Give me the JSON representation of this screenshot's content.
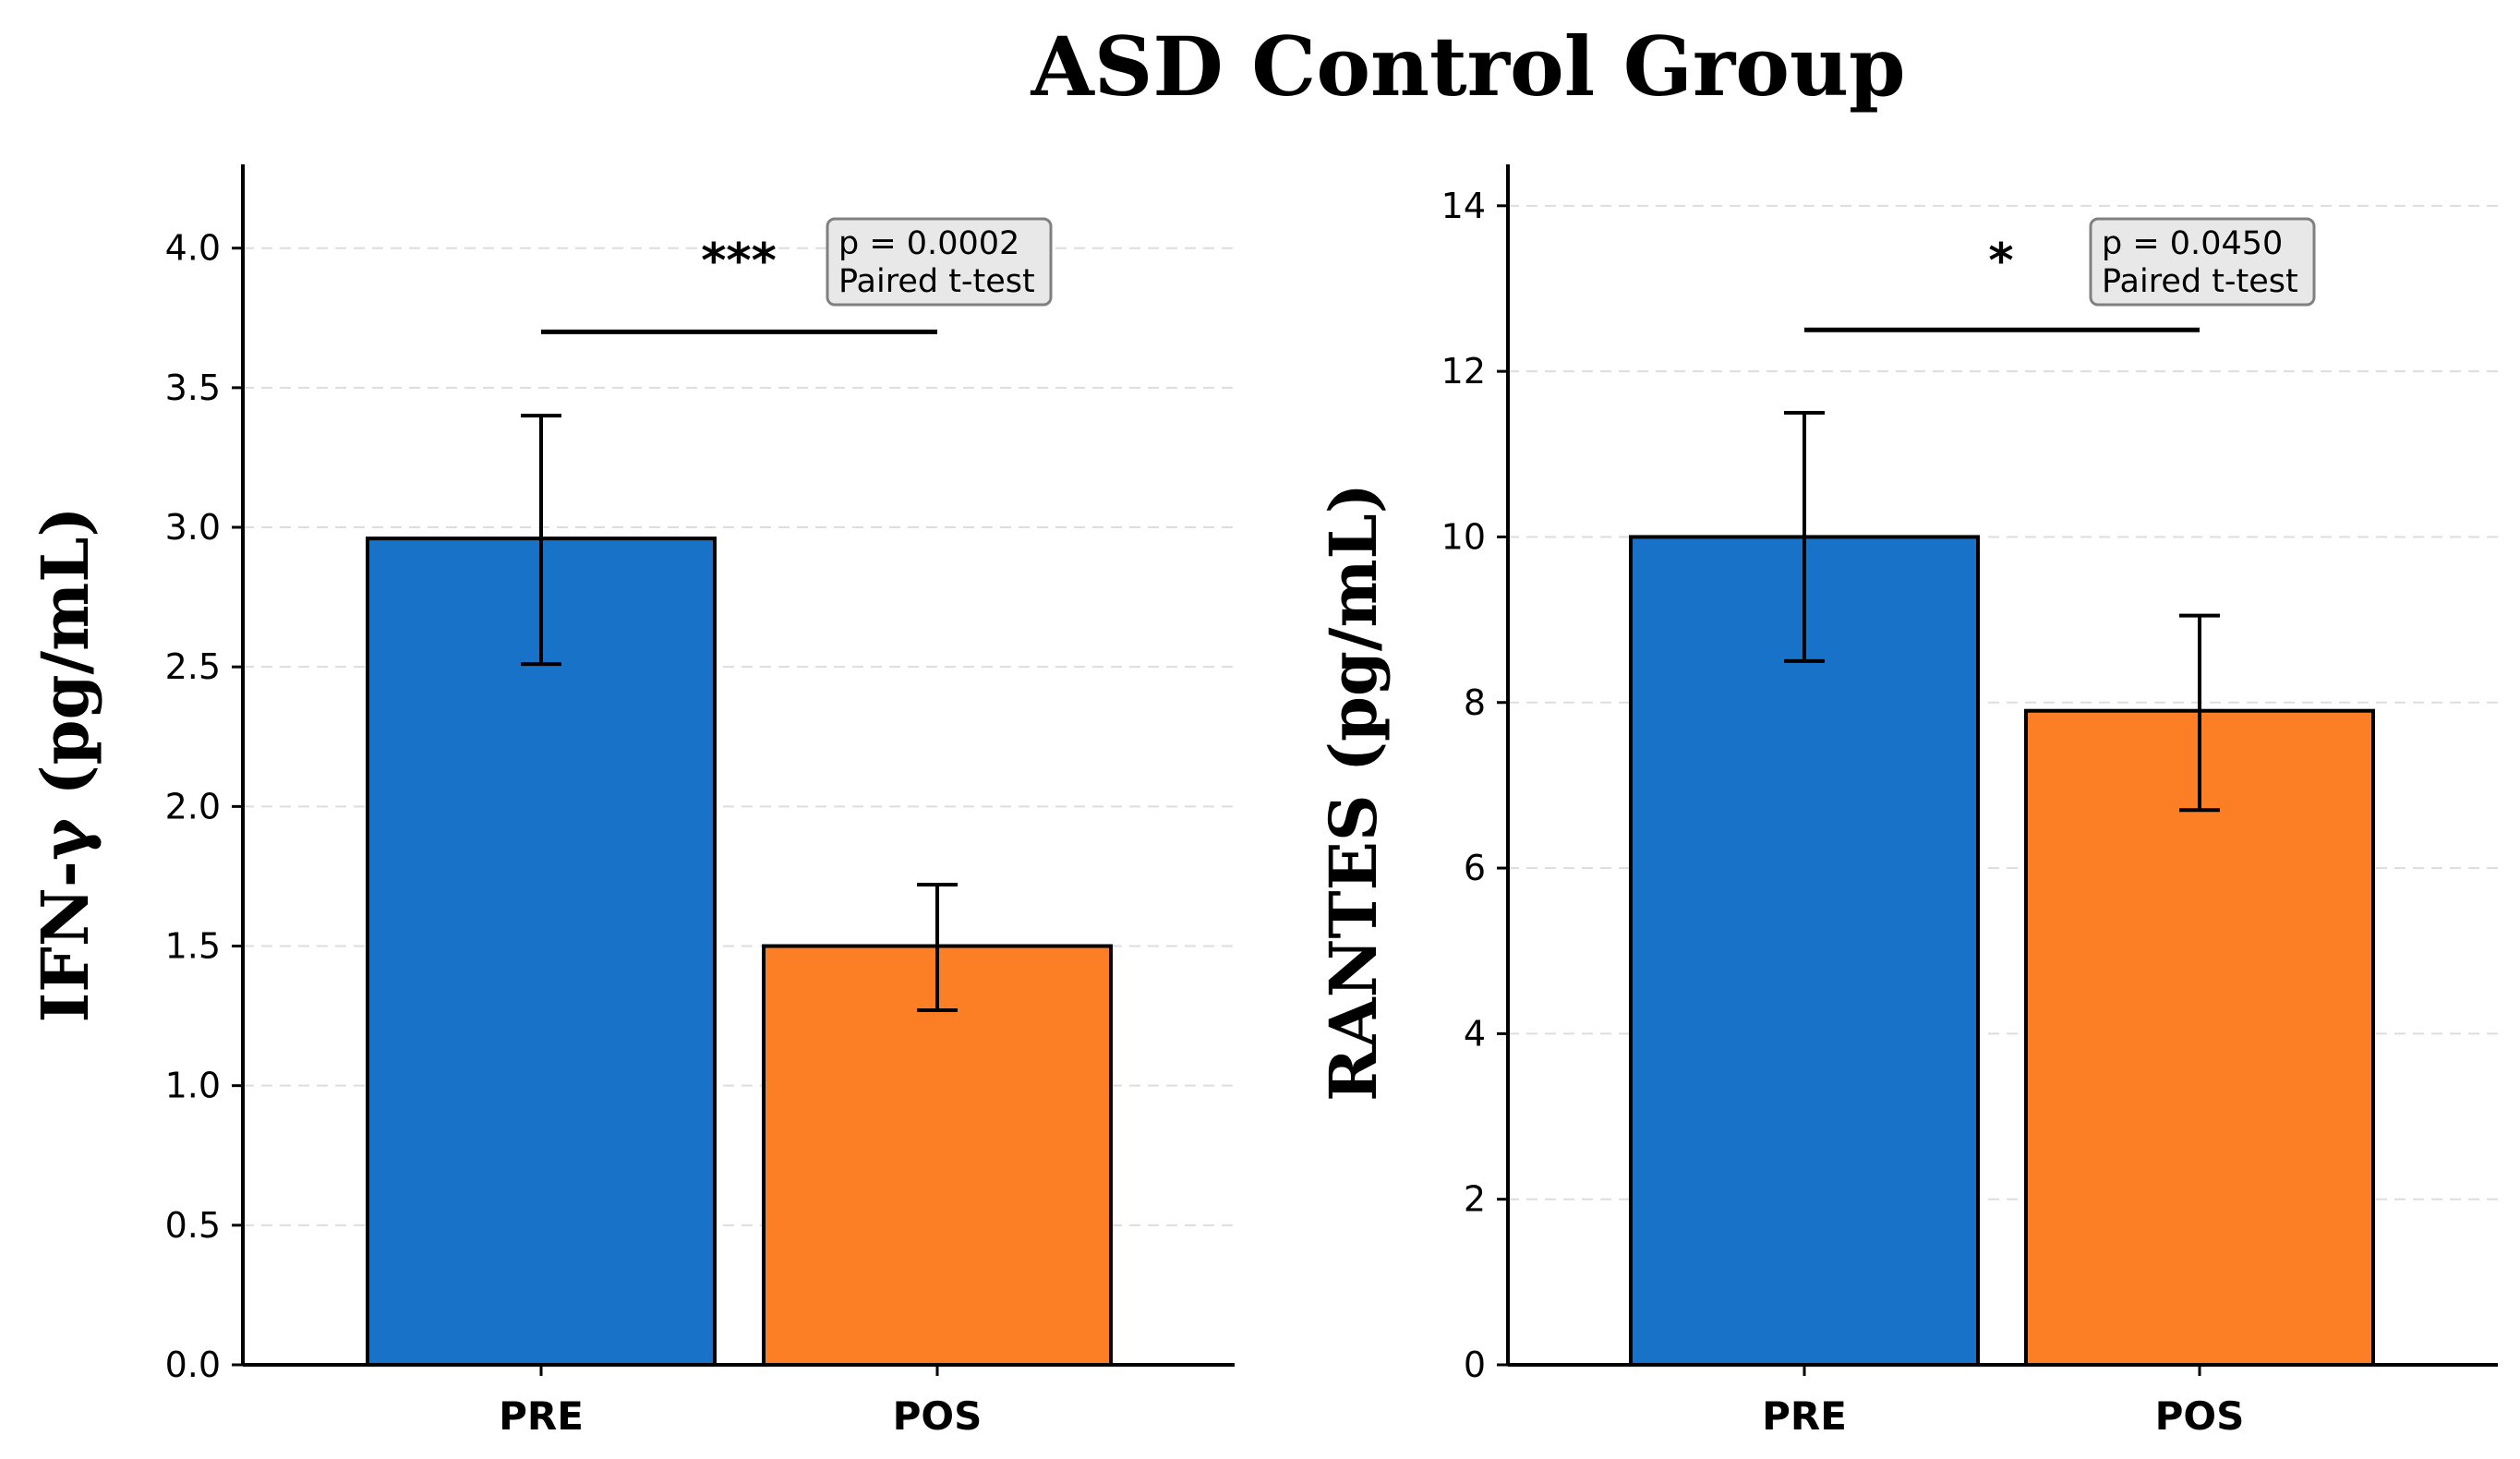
{
  "title": "ASD Control Group",
  "colors": {
    "pre": "#1872C8",
    "pos": "#FC7E25",
    "grid": "#dddddd",
    "box_fill": "#e8e8e8",
    "box_stroke": "#808080"
  },
  "chart_data": [
    {
      "type": "bar",
      "title": "",
      "xlabel": "",
      "ylabel": "IFN-γ (pg/mL)",
      "categories": [
        "PRE",
        "POS"
      ],
      "values": [
        2.96,
        1.5
      ],
      "error_low": [
        2.51,
        1.27
      ],
      "error_high": [
        3.4,
        1.72
      ],
      "ylim": [
        0,
        4.3
      ],
      "yticks": [
        "0.0",
        "0.5",
        "1.0",
        "1.5",
        "2.0",
        "2.5",
        "3.0",
        "3.5",
        "4.0"
      ],
      "ytick_values": [
        0,
        0.5,
        1.0,
        1.5,
        2.0,
        2.5,
        3.0,
        3.5,
        4.0
      ],
      "grid": "horizontal dashed",
      "significance": {
        "stars": "***",
        "bracket_y": 3.7,
        "p_text": "p = 0.0002",
        "test_text": "Paired t-test"
      }
    },
    {
      "type": "bar",
      "title": "",
      "xlabel": "",
      "ylabel": "RANTES (pg/mL)",
      "categories": [
        "PRE",
        "POS"
      ],
      "values": [
        10.0,
        7.9
      ],
      "error_low": [
        8.5,
        6.7
      ],
      "error_high": [
        11.5,
        9.05
      ],
      "ylim": [
        0,
        14.5
      ],
      "yticks": [
        "0",
        "2",
        "4",
        "6",
        "8",
        "10",
        "12",
        "14"
      ],
      "ytick_values": [
        0,
        2,
        4,
        6,
        8,
        10,
        12,
        14
      ],
      "grid": "horizontal dashed",
      "significance": {
        "stars": "*",
        "bracket_y": 12.5,
        "p_text": "p = 0.0450",
        "test_text": "Paired t-test"
      }
    }
  ]
}
